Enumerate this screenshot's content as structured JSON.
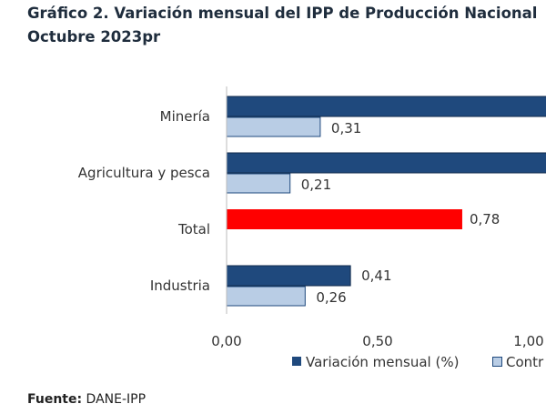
{
  "title_line1": "Gráfico 2. Variación mensual del IPP de Producción Nacional",
  "title_line2": "Octubre 2023pr",
  "fuente_label": "Fuente:",
  "fuente_value": "DANE-IPP",
  "chart_data": {
    "type": "bar",
    "orientation": "horizontal",
    "categories": [
      "Minería",
      "Agricultura y pesca",
      "Total",
      "Industria"
    ],
    "series": [
      {
        "name": "Variación mensual (%)",
        "color": "#1f497d",
        "values": [
          null,
          null,
          0.78,
          0.41
        ]
      },
      {
        "name": "Contr",
        "color": "#b9cde5",
        "values": [
          0.31,
          0.21,
          null,
          0.26
        ]
      }
    ],
    "total_color": "#ff0000",
    "data_labels": [
      "",
      "0,31",
      "",
      "0,21",
      "0,78",
      "",
      "0,41",
      "0,26"
    ],
    "x_ticks": [
      "0,00",
      "0,50",
      "1,00"
    ],
    "x_tick_values": [
      0,
      0.5,
      1.0
    ],
    "legend_position": "bottom",
    "grid": false
  }
}
